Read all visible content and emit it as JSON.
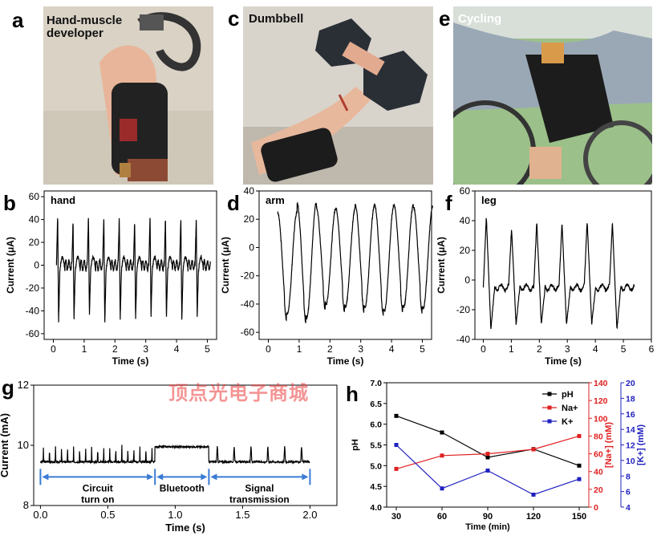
{
  "watermark": "顶点光电子商城",
  "panels": {
    "a": {
      "letter": "a",
      "label_line1": "Hand-muscle",
      "label_line2": "developer"
    },
    "c": {
      "letter": "c",
      "label": "Dumbbell"
    },
    "e": {
      "letter": "e",
      "label": "Cycling"
    },
    "b": {
      "letter": "b"
    },
    "d": {
      "letter": "d"
    },
    "f": {
      "letter": "f"
    },
    "g": {
      "letter": "g",
      "segments": [
        {
          "label_line1": "Circuit",
          "label_line2": "turn on"
        },
        {
          "label_line1": "Bluetooth",
          "label_line2": ""
        },
        {
          "label_line1": "Signal",
          "label_line2": "transmission"
        }
      ]
    },
    "h": {
      "letter": "h"
    }
  },
  "colors": {
    "trace": "#000000",
    "ph": "#000000",
    "na": "#e02020",
    "k": "#2020c0",
    "arrow": "#3a7bd5"
  },
  "chart_data": [
    {
      "id": "b",
      "type": "line",
      "title": "hand",
      "xlabel": "Time (s)",
      "ylabel": "Current (μA)",
      "xlim": [
        -0.3,
        5.3
      ],
      "ylim": [
        -65,
        65
      ],
      "xticks": [
        0,
        1,
        2,
        3,
        4,
        5
      ],
      "yticks": [
        -60,
        -40,
        -20,
        0,
        20,
        40,
        60
      ],
      "pattern": "double-spike",
      "period_s": 0.5,
      "cycles": 10,
      "t_start": 0.1,
      "peak_values": [
        44,
        40,
        44,
        44,
        43,
        40,
        44,
        43,
        43,
        42
      ],
      "trough_values": [
        -50,
        -48,
        -44,
        -52,
        -48,
        -48,
        -45,
        -47,
        -48,
        -45
      ]
    },
    {
      "id": "d",
      "type": "line",
      "title": "arm",
      "xlabel": "Time (s)",
      "ylabel": "Current (μA)",
      "xlim": [
        -0.3,
        5.3
      ],
      "ylim": [
        -65,
        40
      ],
      "xticks": [
        0,
        1,
        2,
        3,
        4,
        5
      ],
      "yticks": [
        -60,
        -40,
        -20,
        0,
        20,
        40
      ],
      "pattern": "oscillation",
      "period_s": 0.63,
      "cycles": 8,
      "t_start": 0.3,
      "peak_values": [
        25,
        32,
        28,
        28,
        30,
        30,
        30,
        29
      ],
      "trough_values": [
        -47,
        -50,
        -40,
        -42,
        -42,
        -45,
        -42,
        -43
      ]
    },
    {
      "id": "f",
      "type": "line",
      "title": "leg",
      "xlabel": "Time (s)",
      "ylabel": "Current (μA)",
      "xlim": [
        -0.3,
        6
      ],
      "ylim": [
        -40,
        60
      ],
      "xticks": [
        0,
        1,
        2,
        3,
        4,
        5,
        6
      ],
      "yticks": [
        -40,
        -20,
        0,
        20,
        40,
        60
      ],
      "pattern": "sharp-peak",
      "period_s": 0.9,
      "cycles": 6,
      "t_start": 0.0,
      "peak_values": [
        43,
        35,
        39,
        39,
        40,
        39
      ],
      "trough_values": [
        -33,
        -30,
        -30,
        -30,
        -30,
        -33
      ]
    },
    {
      "id": "g",
      "type": "line",
      "xlabel": "Time (s)",
      "ylabel": "Current (mA)",
      "xlim": [
        -0.05,
        2.2
      ],
      "ylim": [
        8,
        12
      ],
      "xticks": [
        0.0,
        0.5,
        1.0,
        1.5,
        2.0
      ],
      "xtick_labels": [
        "0.0",
        "0.5",
        "1.0",
        "1.5",
        "2.0"
      ],
      "yticks": [
        8,
        10,
        12
      ],
      "baseline": 9.45,
      "phases": [
        {
          "start": 0.0,
          "end": 0.85,
          "level": 9.45,
          "spikes": 19
        },
        {
          "start": 0.85,
          "end": 1.25,
          "level": 9.95,
          "spikes": 0
        },
        {
          "start": 1.25,
          "end": 2.0,
          "level": 9.45,
          "spikes": 6
        }
      ],
      "phase_boundaries": [
        0.0,
        0.85,
        1.25,
        2.0
      ]
    },
    {
      "id": "h",
      "type": "line",
      "xlabel": "Time (min)",
      "x": [
        30,
        60,
        90,
        120,
        150
      ],
      "series": [
        {
          "name": "pH",
          "axis": "left",
          "label": "pH",
          "values": [
            6.2,
            5.8,
            5.2,
            5.4,
            5.0
          ]
        },
        {
          "name": "Na+",
          "axis": "right1",
          "label": "[Na+] (mM)",
          "values": [
            43,
            58,
            60,
            65,
            80
          ]
        },
        {
          "name": "K+",
          "axis": "right2",
          "label": "[K+] (mM)",
          "values": [
            12,
            6.4,
            8.7,
            5.6,
            7.6
          ]
        }
      ],
      "axes": {
        "left": {
          "label": "pH",
          "lim": [
            4.0,
            7.0
          ],
          "ticks": [
            "4.0",
            "4.5",
            "5.0",
            "5.5",
            "6.0",
            "6.5",
            "7.0"
          ]
        },
        "right1": {
          "label": "[Na+] (mM)",
          "lim": [
            0,
            140
          ],
          "ticks": [
            0,
            20,
            40,
            60,
            80,
            100,
            120,
            140
          ]
        },
        "right2": {
          "label": "[K+] (mM)",
          "lim": [
            4,
            20
          ],
          "ticks": [
            4,
            6,
            8,
            10,
            12,
            14,
            16,
            18,
            20
          ]
        }
      },
      "legend": [
        "pH",
        "Na+",
        "K+"
      ],
      "legend_position": "top-right"
    }
  ]
}
